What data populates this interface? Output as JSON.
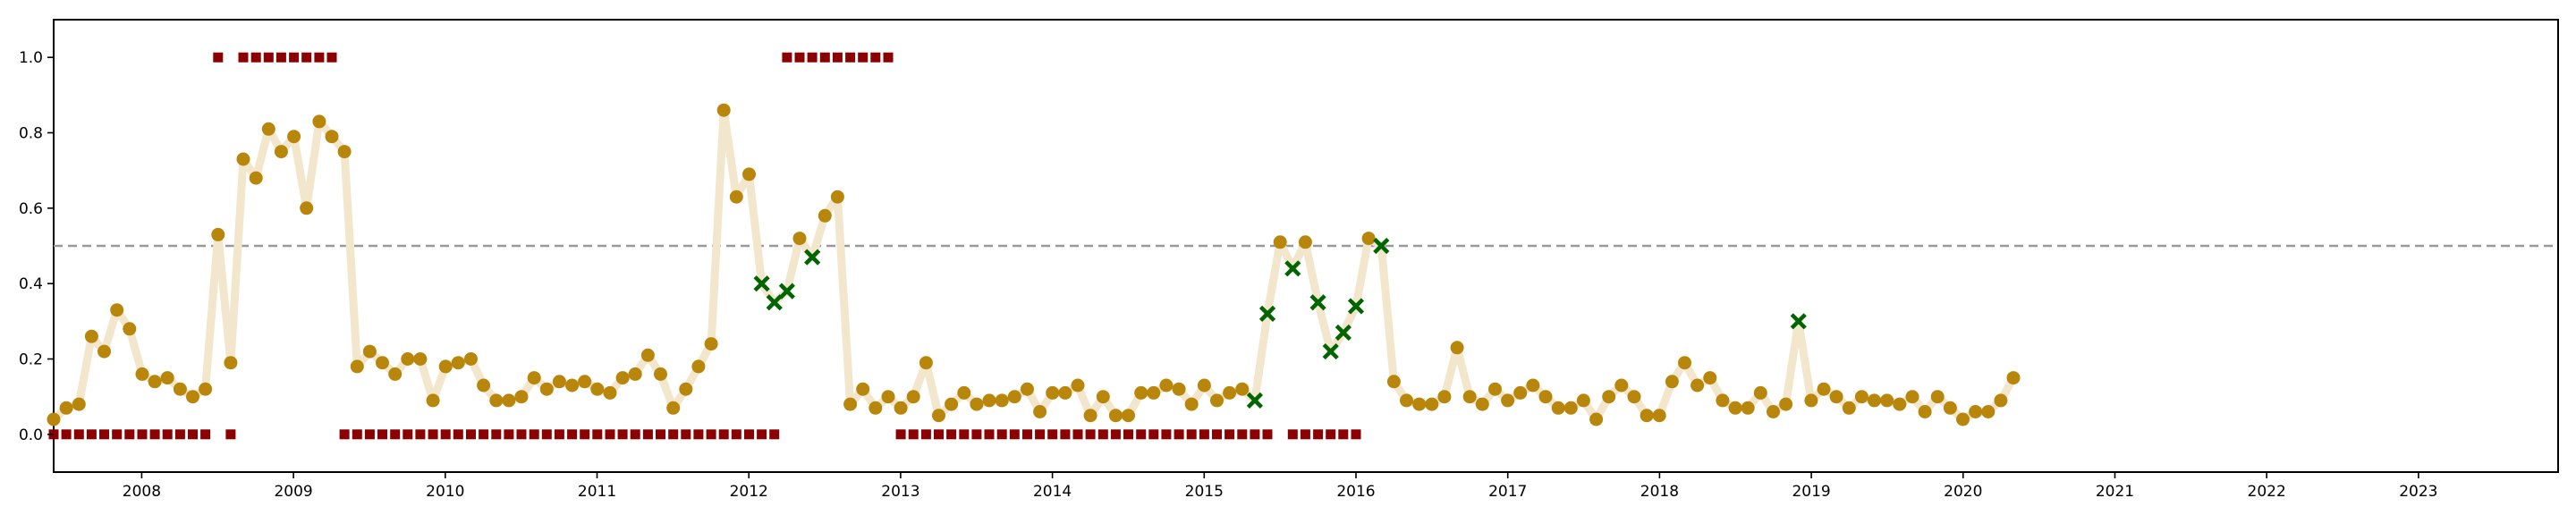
{
  "chart_data": {
    "type": "scatter",
    "title": "",
    "xlabel": "",
    "ylabel": "",
    "x_ticks": [
      "2008",
      "2009",
      "2010",
      "2011",
      "2012",
      "2013",
      "2014",
      "2015",
      "2016",
      "2017",
      "2018",
      "2019",
      "2020",
      "2021",
      "2022",
      "2023"
    ],
    "y_ticks": [
      "0.0",
      "0.2",
      "0.4",
      "0.6",
      "0.8",
      "1.0"
    ],
    "xlim": [
      2007.42,
      2023.92
    ],
    "ylim": [
      -0.1,
      1.1
    ],
    "grid": false,
    "legend": "none",
    "threshold": 0.5,
    "colors": {
      "line": "#f2e6cc",
      "points": "#b8860b",
      "labels": "#8b0000",
      "anomalies": "#006400",
      "threshold": "#999999"
    },
    "start_x": 2007.42,
    "step": 0.0833,
    "values": [
      0.04,
      0.07,
      0.08,
      0.26,
      0.22,
      0.33,
      0.28,
      0.16,
      0.14,
      0.15,
      0.12,
      0.1,
      0.12,
      0.53,
      0.19,
      0.73,
      0.68,
      0.81,
      0.75,
      0.79,
      0.6,
      0.83,
      0.79,
      0.75,
      0.18,
      0.22,
      0.19,
      0.16,
      0.2,
      0.2,
      0.09,
      0.18,
      0.19,
      0.2,
      0.13,
      0.09,
      0.09,
      0.1,
      0.15,
      0.12,
      0.14,
      0.13,
      0.14,
      0.12,
      0.11,
      0.15,
      0.16,
      0.21,
      0.16,
      0.07,
      0.12,
      0.18,
      0.24,
      0.86,
      0.63,
      0.69,
      0.4,
      0.35,
      0.38,
      0.52,
      0.47,
      0.58,
      0.63,
      0.08,
      0.12,
      0.07,
      0.1,
      0.07,
      0.1,
      0.19,
      0.05,
      0.08,
      0.11,
      0.08,
      0.09,
      0.09,
      0.1,
      0.12,
      0.06,
      0.11,
      0.11,
      0.13,
      0.05,
      0.1,
      0.05,
      0.05,
      0.11,
      0.11,
      0.13,
      0.12,
      0.08,
      0.13,
      0.09,
      0.11,
      0.12,
      0.09,
      0.32,
      0.51,
      0.44,
      0.51,
      0.35,
      0.22,
      0.27,
      0.34,
      0.52,
      0.5,
      0.14,
      0.09,
      0.08,
      0.08,
      0.1,
      0.23,
      0.1,
      0.08,
      0.12,
      0.09,
      0.11,
      0.13,
      0.1,
      0.07,
      0.07,
      0.09,
      0.04,
      0.1,
      0.13,
      0.1,
      0.05,
      0.05,
      0.14,
      0.19,
      0.13,
      0.15,
      0.09,
      0.07,
      0.07,
      0.11,
      0.06,
      0.08,
      0.3,
      0.09,
      0.12,
      0.1,
      0.07,
      0.1,
      0.09,
      0.09,
      0.08,
      0.1,
      0.06,
      0.1,
      0.07,
      0.04,
      0.06,
      0.06,
      0.09,
      0.15
    ],
    "anomaly_indices": [
      56,
      57,
      58,
      60,
      95,
      96,
      98,
      100,
      101,
      102,
      103,
      105,
      138
    ],
    "label_runs": [
      {
        "start": 0,
        "value": "00000000000001011111111000000000000000000000000000000000001111111110000000000000000000000000000000000000000000000000000000000000000000000000000000000000000"
      }
    ],
    "labels_missing": [
      97,
      104,
      105,
      106,
      107,
      108,
      109,
      110,
      111,
      112,
      113,
      114,
      115,
      116,
      117,
      118,
      119,
      120,
      121,
      122,
      123,
      124,
      125,
      126,
      127,
      128,
      129,
      130,
      131,
      132,
      133,
      134,
      135,
      136,
      137,
      138,
      139,
      140,
      141,
      142,
      143,
      144,
      145,
      146,
      147,
      148,
      149,
      150,
      151,
      152,
      153,
      154,
      155
    ]
  }
}
